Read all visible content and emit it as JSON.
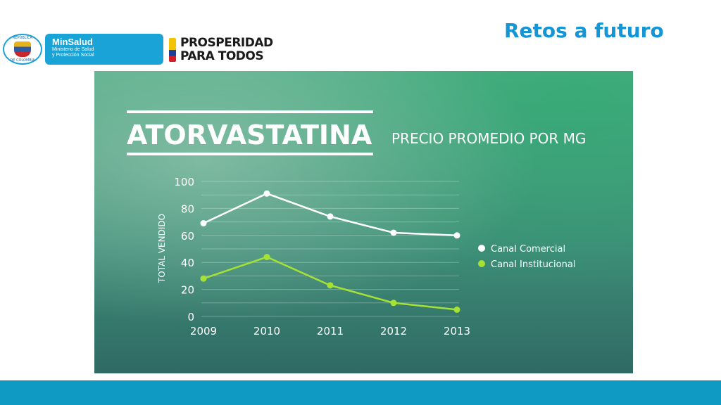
{
  "slide": {
    "title": "Retos a futuro"
  },
  "logos": {
    "seal": {
      "top_text": "REPÚBLICA",
      "bottom_text": "DE COLOMBIA"
    },
    "minsalud": {
      "brand": "MinSalud",
      "line1": "Ministerio de Salud",
      "line2": "y Protección Social"
    },
    "prosperidad": {
      "line1": "PROSPERIDAD",
      "line2": "PARA TODOS"
    }
  },
  "colors": {
    "title_blue": "#1495d6",
    "comercial": "#ffffff",
    "institucional": "#a6e235",
    "bottom_bar": "#0e9ac2"
  },
  "chart_data": {
    "type": "line",
    "title": "ATORVASTATINA",
    "subtitle": "PRECIO PROMEDIO POR MG",
    "xlabel": "",
    "ylabel": "TOTAL VENDIDO",
    "x": [
      "2009",
      "2010",
      "2011",
      "2012",
      "2013"
    ],
    "ylim": [
      0,
      100
    ],
    "yticks": [
      "0",
      "20",
      "40",
      "60",
      "80",
      "100"
    ],
    "grid": true,
    "legend": "right",
    "series": [
      {
        "name": "Canal Comercial",
        "color": "#ffffff",
        "values": [
          69,
          91,
          74,
          62,
          60
        ]
      },
      {
        "name": "Canal Institucional",
        "color": "#a6e235",
        "values": [
          28,
          44,
          23,
          10,
          5
        ]
      }
    ]
  }
}
